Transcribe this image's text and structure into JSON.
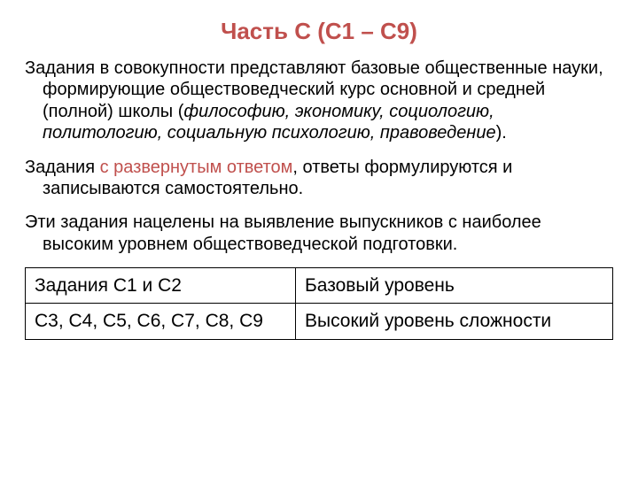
{
  "title": "Часть С (С1 – С9)",
  "para1_plain": "Задания в совокупности представляют базовые общественные науки, формирующие обществоведческий курс основной и средней (полной) школы (",
  "para1_italic": "философию, экономику, социологию, политологию, социальную психологию, правоведение",
  "para1_plain_end": ").",
  "para2_pre": "Задания ",
  "para2_highlight": "с развернутым ответом",
  "para2_post": ", ответы формулируются и записываются самостоятельно.",
  "para3": "Эти задания нацелены на выявление выпускников с наиболее высоким уровнем обществоведческой подготовки.",
  "table": {
    "rows": [
      {
        "c1": "Задания С1 и С2",
        "c2": "Базовый уровень"
      },
      {
        "c1": "С3, С4, С5, С6, С7, С8, С9",
        "c2": "Высокий уровень сложности"
      }
    ]
  },
  "colors": {
    "accent": "#c0504d",
    "text": "#000000",
    "background": "#ffffff",
    "table_border": "#000000"
  },
  "typography": {
    "title_fontsize": 26,
    "body_fontsize": 20,
    "table_fontsize": 21,
    "font_family": "Arial"
  }
}
